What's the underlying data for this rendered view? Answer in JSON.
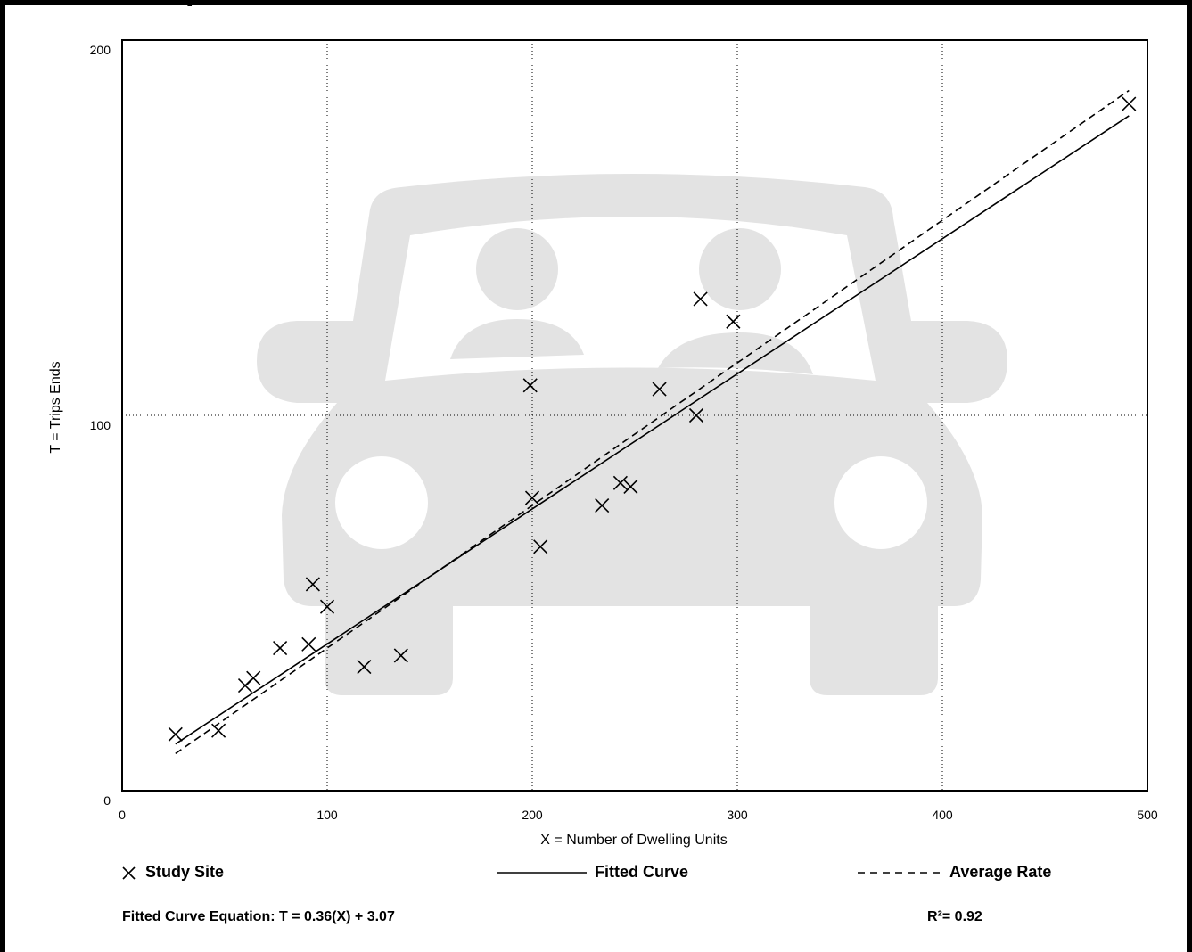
{
  "chart_data": {
    "type": "scatter",
    "xlabel": "X = Number of Dwelling Units",
    "ylabel": "T = Trips Ends",
    "xlim": [
      0,
      500
    ],
    "ylim": [
      0,
      200
    ],
    "x_ticks": [
      "0",
      "100",
      "200",
      "300",
      "400",
      "500"
    ],
    "y_ticks": [
      "0",
      "100",
      "200"
    ],
    "grid": {
      "vertical": true,
      "horizontal": true,
      "style": "dotted"
    },
    "series": [
      {
        "name": "Study Site",
        "kind": "points",
        "marker": "x",
        "points": [
          [
            26,
            15
          ],
          [
            47,
            16
          ],
          [
            60,
            28
          ],
          [
            64,
            30
          ],
          [
            77,
            38
          ],
          [
            91,
            39
          ],
          [
            93,
            55
          ],
          [
            100,
            49
          ],
          [
            118,
            33
          ],
          [
            136,
            36
          ],
          [
            199,
            108
          ],
          [
            200,
            78
          ],
          [
            204,
            65
          ],
          [
            234,
            76
          ],
          [
            243,
            82
          ],
          [
            248,
            81
          ],
          [
            262,
            107
          ],
          [
            280,
            100
          ],
          [
            282,
            131
          ],
          [
            298,
            125
          ],
          [
            491,
            183
          ]
        ]
      },
      {
        "name": "Fitted Curve",
        "kind": "line",
        "style": "solid",
        "slope": 0.36,
        "intercept": 3.07,
        "x_range": [
          26,
          491
        ]
      },
      {
        "name": "Average Rate",
        "kind": "line",
        "style": "dashed",
        "slope": 0.38,
        "intercept": 0,
        "x_range": [
          26,
          491
        ]
      }
    ],
    "legend_position": "bottom"
  },
  "header": {
    "title_fragment": "pl"
  },
  "legend": {
    "study_site": "Study Site",
    "fitted_curve": "Fitted Curve",
    "average_rate": "Average Rate"
  },
  "footer": {
    "equation": "Fitted Curve Equation: T = 0.36(X) + 3.07",
    "r_squared": "R²= 0.92"
  },
  "colors": {
    "background_watermark": "#e3e3e3",
    "ink": "#000000"
  }
}
